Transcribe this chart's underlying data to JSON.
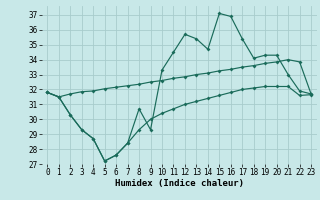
{
  "xlabel": "Humidex (Indice chaleur)",
  "background_color": "#c8e8e8",
  "grid_color": "#a8cccc",
  "line_color": "#1a6b5a",
  "xlim": [
    -0.5,
    23.5
  ],
  "ylim": [
    27,
    37.6
  ],
  "yticks": [
    27,
    28,
    29,
    30,
    31,
    32,
    33,
    34,
    35,
    36,
    37
  ],
  "xticks": [
    0,
    1,
    2,
    3,
    4,
    5,
    6,
    7,
    8,
    9,
    10,
    11,
    12,
    13,
    14,
    15,
    16,
    17,
    18,
    19,
    20,
    21,
    22,
    23
  ],
  "line1_x": [
    0,
    1,
    2,
    3,
    4,
    5,
    6,
    7,
    8,
    9,
    10,
    11,
    12,
    13,
    14,
    15,
    16,
    17,
    18,
    19,
    20,
    21,
    22,
    23
  ],
  "line1_y": [
    31.8,
    31.5,
    30.3,
    29.3,
    28.7,
    27.2,
    27.6,
    28.4,
    30.7,
    29.3,
    33.3,
    34.5,
    35.7,
    35.4,
    34.7,
    37.1,
    36.9,
    35.4,
    34.1,
    34.3,
    34.3,
    33.0,
    31.9,
    31.7
  ],
  "line2_x": [
    0,
    1,
    2,
    3,
    4,
    5,
    6,
    7,
    8,
    9,
    10,
    11,
    12,
    13,
    14,
    15,
    16,
    17,
    18,
    19,
    20,
    21,
    22,
    23
  ],
  "line2_y": [
    31.8,
    31.5,
    31.7,
    31.85,
    31.9,
    32.05,
    32.15,
    32.25,
    32.35,
    32.5,
    32.6,
    32.75,
    32.85,
    33.0,
    33.1,
    33.25,
    33.35,
    33.5,
    33.6,
    33.75,
    33.85,
    34.0,
    33.85,
    31.7
  ],
  "line3_x": [
    0,
    1,
    2,
    3,
    4,
    5,
    6,
    7,
    8,
    9,
    10,
    11,
    12,
    13,
    14,
    15,
    16,
    17,
    18,
    19,
    20,
    21,
    22,
    23
  ],
  "line3_y": [
    31.8,
    31.5,
    30.3,
    29.3,
    28.7,
    27.2,
    27.6,
    28.4,
    29.3,
    30.0,
    30.4,
    30.7,
    31.0,
    31.2,
    31.4,
    31.6,
    31.8,
    32.0,
    32.1,
    32.2,
    32.2,
    32.2,
    31.6,
    31.65
  ]
}
